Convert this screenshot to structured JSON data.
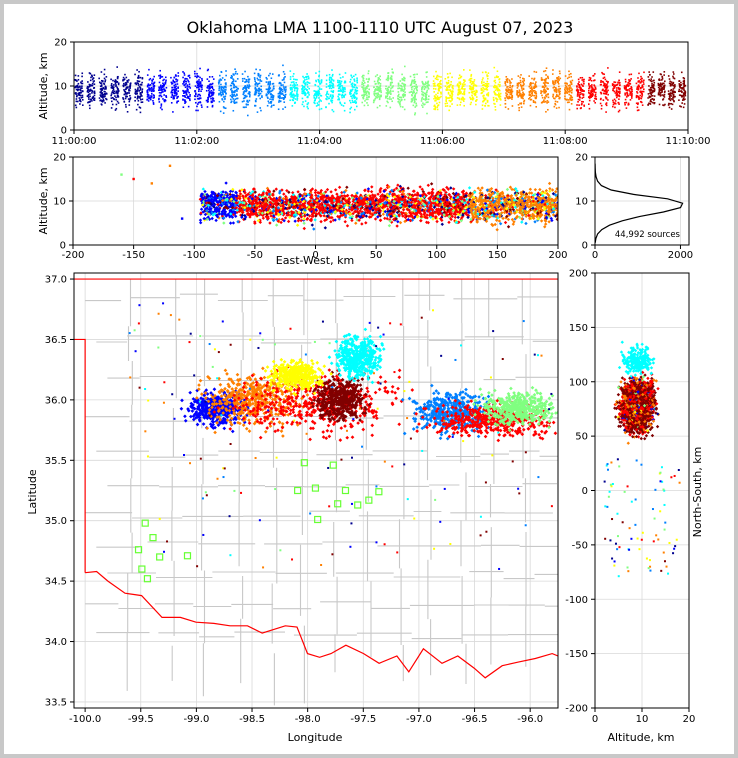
{
  "chart_data": {
    "title": "Oklahoma LMA 1100-1110 UTC August 07, 2023",
    "source_count_label": "44,992 sources",
    "colormap": [
      "#00008f",
      "#0000ff",
      "#0080ff",
      "#00ffff",
      "#80ff80",
      "#ffff00",
      "#ff8000",
      "#ff0000",
      "#800000"
    ],
    "panels": [
      {
        "name": "altitude-time",
        "type": "scatter",
        "ylabel": "Altitude, km",
        "xlim": [
          "11:00:00",
          "11:10:00"
        ],
        "ylim": [
          0,
          20
        ],
        "xticks": [
          "11:00:00",
          "11:02:00",
          "11:04:00",
          "11:06:00",
          "11:08:00",
          "11:10:00"
        ],
        "yticks": [
          0,
          10,
          20
        ],
        "series": [
          {
            "color": "#00008f",
            "x": [
              "11:00:00",
              "11:01:10"
            ],
            "y": [
              2,
              18
            ]
          },
          {
            "color": "#0000ff",
            "x": [
              "11:01:10",
              "11:02:20"
            ],
            "y": [
              2,
              18
            ]
          },
          {
            "color": "#0080ff",
            "x": [
              "11:02:20",
              "11:03:30"
            ],
            "y": [
              2,
              18
            ]
          },
          {
            "color": "#00ffff",
            "x": [
              "11:03:30",
              "11:04:40"
            ],
            "y": [
              2,
              18
            ]
          },
          {
            "color": "#80ff80",
            "x": [
              "11:04:40",
              "11:05:50"
            ],
            "y": [
              2,
              18
            ]
          },
          {
            "color": "#ffff00",
            "x": [
              "11:05:50",
              "11:07:00"
            ],
            "y": [
              2,
              18
            ]
          },
          {
            "color": "#ff8000",
            "x": [
              "11:07:00",
              "11:08:10"
            ],
            "y": [
              2,
              18
            ]
          },
          {
            "color": "#ff0000",
            "x": [
              "11:08:10",
              "11:09:20"
            ],
            "y": [
              2,
              18
            ]
          },
          {
            "color": "#800000",
            "x": [
              "11:09:20",
              "11:10:00"
            ],
            "y": [
              2,
              18
            ]
          }
        ]
      },
      {
        "name": "altitude-east-west",
        "type": "scatter",
        "xlabel": "East-West, km",
        "ylabel": "Altitude, km",
        "xlim": [
          -200,
          200
        ],
        "ylim": [
          0,
          20
        ],
        "xticks": [
          -200,
          -150,
          -100,
          -50,
          0,
          50,
          100,
          150,
          200
        ],
        "yticks": [
          0,
          10,
          20
        ],
        "source_extent_km": {
          "x": [
            -95,
            200
          ],
          "y": [
            1,
            19
          ]
        }
      },
      {
        "name": "altitude-histogram",
        "type": "line",
        "xlim": [
          0,
          2200
        ],
        "ylim": [
          0,
          20
        ],
        "xticks": [
          0,
          2000
        ],
        "yticks": [
          0,
          10,
          20
        ],
        "x": [
          5,
          20,
          60,
          160,
          340,
          640,
          1050,
          1600,
          2000,
          2050,
          1700,
          900,
          380,
          150,
          60,
          25,
          10,
          4,
          2
        ],
        "y": [
          0.5,
          1.5,
          2.5,
          3.5,
          4.5,
          5.5,
          6.5,
          7.5,
          8.5,
          9.5,
          10.5,
          11.5,
          12.5,
          13.5,
          14.5,
          15.5,
          16.5,
          17.5,
          18.5
        ]
      },
      {
        "name": "plan-view-map",
        "type": "scatter",
        "xlabel": "Longitude",
        "ylabel": "Latitude",
        "xlim": [
          -100.1,
          -95.75
        ],
        "ylim": [
          33.45,
          37.05
        ],
        "xticks": [
          -100.0,
          -99.5,
          -99.0,
          -98.5,
          -98.0,
          -97.5,
          -97.0,
          -96.5,
          -96.0
        ],
        "yticks": [
          33.5,
          34.0,
          34.5,
          35.0,
          35.5,
          36.0,
          36.5,
          37.0
        ],
        "clusters": [
          {
            "color": "#0000ff",
            "lon": [
              -99.05,
              -98.6
            ],
            "lat": [
              35.8,
              36.05
            ]
          },
          {
            "color": "#ff8000",
            "lon": [
              -98.9,
              -98.1
            ],
            "lat": [
              35.8,
              36.2
            ]
          },
          {
            "color": "#ff0000",
            "lon": [
              -98.6,
              -97.3
            ],
            "lat": [
              35.75,
              36.2
            ]
          },
          {
            "color": "#800000",
            "lon": [
              -97.9,
              -97.5
            ],
            "lat": [
              35.85,
              36.15
            ]
          },
          {
            "color": "#00ffff",
            "lon": [
              -97.75,
              -97.35
            ],
            "lat": [
              36.2,
              36.5
            ]
          },
          {
            "color": "#ffff00",
            "lon": [
              -98.3,
              -97.9
            ],
            "lat": [
              36.1,
              36.3
            ]
          },
          {
            "color": "#0080ff",
            "lon": [
              -97.0,
              -96.4
            ],
            "lat": [
              35.75,
              36.05
            ]
          },
          {
            "color": "#ff0000",
            "lon": [
              -96.9,
              -95.8
            ],
            "lat": [
              35.7,
              35.95
            ]
          },
          {
            "color": "#80ff80",
            "lon": [
              -96.4,
              -95.8
            ],
            "lat": [
              35.8,
              36.05
            ]
          }
        ],
        "stations": [
          {
            "lon": -99.46,
            "lat": 34.98
          },
          {
            "lon": -99.39,
            "lat": 34.86
          },
          {
            "lon": -99.33,
            "lat": 34.7
          },
          {
            "lon": -99.52,
            "lat": 34.76
          },
          {
            "lon": -99.49,
            "lat": 34.6
          },
          {
            "lon": -99.44,
            "lat": 34.52
          },
          {
            "lon": -99.08,
            "lat": 34.71
          },
          {
            "lon": -98.09,
            "lat": 35.25
          },
          {
            "lon": -98.03,
            "lat": 35.48
          },
          {
            "lon": -97.93,
            "lat": 35.27
          },
          {
            "lon": -97.91,
            "lat": 35.01
          },
          {
            "lon": -97.77,
            "lat": 35.46
          },
          {
            "lon": -97.73,
            "lat": 35.14
          },
          {
            "lon": -97.66,
            "lat": 35.25
          },
          {
            "lon": -97.55,
            "lat": 35.13
          },
          {
            "lon": -97.45,
            "lat": 35.17
          },
          {
            "lon": -97.36,
            "lat": 35.24
          }
        ]
      },
      {
        "name": "north-south-altitude",
        "type": "scatter",
        "xlabel": "Altitude, km",
        "ylabel": "North-South, km",
        "xlim": [
          0,
          20
        ],
        "ylim": [
          -200,
          200
        ],
        "xticks": [
          0,
          10,
          20
        ],
        "yticks": [
          -200,
          -150,
          -100,
          -50,
          0,
          50,
          100,
          150,
          200
        ],
        "source_extent_km": {
          "x": [
            1,
            19
          ],
          "y": [
            40,
            115
          ]
        }
      }
    ]
  }
}
